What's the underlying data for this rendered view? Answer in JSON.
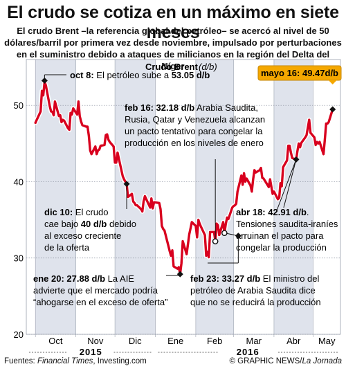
{
  "title": "El crudo se cotiza en un máximo en siete meses",
  "subtitle": "El crudo Brent –la referencia global del petróleo– se acercó al nivel de 50 dólares/barril por primera vez desde noviembre, impulsado por perturbaciones en el suministro debido a ataques de milicianos en la región del Delta del Níger",
  "chart_data": {
    "type": "line",
    "title": "Crudo Brent",
    "title_unit": "(d/b)",
    "ylim": [
      20,
      56
    ],
    "y_ticks": [
      20,
      30,
      40,
      50
    ],
    "x_months": [
      "Oct",
      "Nov",
      "Dic",
      "Ene",
      "Feb",
      "Mar",
      "Abr",
      "May"
    ],
    "years": [
      "2015",
      "2016"
    ],
    "grid": true,
    "color": "#d8001e",
    "series": [
      {
        "x": [
          "2015-10-01",
          "2015-10-02",
          "2015-10-05",
          "2015-10-06",
          "2015-10-07",
          "2015-10-08",
          "2015-10-09",
          "2015-10-12",
          "2015-10-13",
          "2015-10-14",
          "2015-10-15",
          "2015-10-16",
          "2015-10-19",
          "2015-10-20",
          "2015-10-21",
          "2015-10-22",
          "2015-10-23",
          "2015-10-26",
          "2015-10-27",
          "2015-10-28",
          "2015-10-29",
          "2015-10-30",
          "2015-11-02",
          "2015-11-03",
          "2015-11-04",
          "2015-11-05",
          "2015-11-06",
          "2015-11-09",
          "2015-11-10",
          "2015-11-11",
          "2015-11-12",
          "2015-11-13",
          "2015-11-16",
          "2015-11-17",
          "2015-11-18",
          "2015-11-19",
          "2015-11-20",
          "2015-11-23",
          "2015-11-24",
          "2015-11-25",
          "2015-11-26",
          "2015-11-27",
          "2015-11-30",
          "2015-12-01",
          "2015-12-02",
          "2015-12-03",
          "2015-12-04",
          "2015-12-07",
          "2015-12-08",
          "2015-12-09",
          "2015-12-10",
          "2015-12-11",
          "2015-12-14",
          "2015-12-15",
          "2015-12-16",
          "2015-12-17",
          "2015-12-18",
          "2015-12-21",
          "2015-12-22",
          "2015-12-23",
          "2015-12-24",
          "2015-12-28",
          "2015-12-29",
          "2015-12-30",
          "2015-12-31",
          "2016-01-04",
          "2016-01-05",
          "2016-01-06",
          "2016-01-07",
          "2016-01-08",
          "2016-01-11",
          "2016-01-12",
          "2016-01-13",
          "2016-01-14",
          "2016-01-15",
          "2016-01-18",
          "2016-01-19",
          "2016-01-20",
          "2016-01-21",
          "2016-01-22",
          "2016-01-25",
          "2016-01-26",
          "2016-01-27",
          "2016-01-28",
          "2016-01-29",
          "2016-02-01",
          "2016-02-02",
          "2016-02-03",
          "2016-02-04",
          "2016-02-05",
          "2016-02-08",
          "2016-02-09",
          "2016-02-10",
          "2016-02-11",
          "2016-02-12",
          "2016-02-15",
          "2016-02-16",
          "2016-02-17",
          "2016-02-18",
          "2016-02-19",
          "2016-02-22",
          "2016-02-23",
          "2016-02-24",
          "2016-02-25",
          "2016-02-26",
          "2016-02-29",
          "2016-03-01",
          "2016-03-02",
          "2016-03-03",
          "2016-03-04",
          "2016-03-07",
          "2016-03-08",
          "2016-03-09",
          "2016-03-10",
          "2016-03-11",
          "2016-03-14",
          "2016-03-15",
          "2016-03-16",
          "2016-03-17",
          "2016-03-18",
          "2016-03-21",
          "2016-03-22",
          "2016-03-23",
          "2016-03-24",
          "2016-03-28",
          "2016-03-29",
          "2016-03-30",
          "2016-03-31",
          "2016-04-01",
          "2016-04-04",
          "2016-04-05",
          "2016-04-06",
          "2016-04-07",
          "2016-04-08",
          "2016-04-11",
          "2016-04-12",
          "2016-04-13",
          "2016-04-14",
          "2016-04-15",
          "2016-04-18",
          "2016-04-19",
          "2016-04-20",
          "2016-04-21",
          "2016-04-22",
          "2016-04-25",
          "2016-04-26",
          "2016-04-27",
          "2016-04-28",
          "2016-04-29",
          "2016-05-02",
          "2016-05-03",
          "2016-05-04",
          "2016-05-05",
          "2016-05-06",
          "2016-05-09",
          "2016-05-10",
          "2016-05-11",
          "2016-05-12",
          "2016-05-13",
          "2016-05-16"
        ],
        "values": [
          47.7,
          48.1,
          49.2,
          51.9,
          51.3,
          53.05,
          52.6,
          49.9,
          49.2,
          49.15,
          48.7,
          50.5,
          48.6,
          48.7,
          47.8,
          48.1,
          48.0,
          47.0,
          46.8,
          49.0,
          48.8,
          49.6,
          48.8,
          50.5,
          48.6,
          47.9,
          47.4,
          47.2,
          47.2,
          46.0,
          44.1,
          43.6,
          44.6,
          43.6,
          44.1,
          44.2,
          44.7,
          44.8,
          46.1,
          46.2,
          45.5,
          45.2,
          44.6,
          42.5,
          42.5,
          43.8,
          43.0,
          40.7,
          40.3,
          40.0,
          39.7,
          38.0,
          38.4,
          37.4,
          37.2,
          36.9,
          36.9,
          36.4,
          36.1,
          37.4,
          38.1,
          36.6,
          37.8,
          36.5,
          37.3,
          37.2,
          36.4,
          34.2,
          33.8,
          33.6,
          31.6,
          30.9,
          30.3,
          31.0,
          28.9,
          28.6,
          28.8,
          27.88,
          29.3,
          32.2,
          30.5,
          31.8,
          33.1,
          33.9,
          34.7,
          34.2,
          32.7,
          35.0,
          34.5,
          34.1,
          33.0,
          30.3,
          30.8,
          30.1,
          33.4,
          33.4,
          32.18,
          34.5,
          34.3,
          33.0,
          34.7,
          33.27,
          34.4,
          35.3,
          35.1,
          36.6,
          36.8,
          36.9,
          37.1,
          38.7,
          40.8,
          39.6,
          41.1,
          40.0,
          40.4,
          39.5,
          38.7,
          40.3,
          41.5,
          41.2,
          41.5,
          41.8,
          40.5,
          40.4,
          39.3,
          40.3,
          39.3,
          38.4,
          38.7,
          37.7,
          37.9,
          39.8,
          39.4,
          41.9,
          42.8,
          44.7,
          44.7,
          43.8,
          43.1,
          42.91,
          44.0,
          45.0,
          44.5,
          45.1,
          45.8,
          46.1,
          47.1,
          48.1,
          46.4,
          45.8,
          44.8,
          45.2,
          45.0,
          45.2,
          43.6,
          45.5,
          47.6,
          47.6,
          47.8,
          49.47
        ]
      }
    ],
    "callouts": [
      {
        "date": "oct 8",
        "label": "oct 8:",
        "text": " El petróleo sube a ",
        "value": "53.05 d/b"
      },
      {
        "date": "feb 16",
        "value": "feb 16: 32.18 d/b",
        "text": " Arabia Saudita,",
        "lines": [
          "Rusia, Qatar y Venezuela alcanzan",
          "un pacto tentativo para congelar la",
          "producción en los niveles de enero"
        ]
      },
      {
        "date": "dic 10",
        "value": "dic 10:",
        "lines": [
          " El crudo",
          "cae bajo ",
          "40 d/b",
          " debido",
          "al exceso creciente",
          "de la oferta"
        ]
      },
      {
        "date": "abr 18",
        "value": "abr 18: 42.91 d/b",
        "text": ".",
        "lines": [
          "Tensiones saudita-iraníes",
          "arruinan el pacto para",
          "congelar la producción"
        ]
      },
      {
        "date": "ene 20",
        "value": "ene 20: 27.88 d/b",
        "text": " La AIE",
        "lines": [
          "advierte que el mercado podría",
          "“ahogarse en el exceso de oferta”"
        ]
      },
      {
        "date": "feb 23",
        "value": "feb 23: 33.27 d/b",
        "text": " El ministro del",
        "lines": [
          "petróleo de Arabia Saudita dice",
          "que no se reducirá la producción"
        ]
      },
      {
        "date": "mayo 16",
        "text": "mayo 16: 49.47d/b"
      }
    ]
  },
  "source_label": "Fuentes: ",
  "source_ft": "Financial Times",
  "source_rest": ", Investing.com",
  "credit_main": "© GRAPHIC NEWS/",
  "credit_italic": "La Jornada",
  "colors": {
    "line": "#d8001e",
    "band": "#dfe3ec",
    "callout": "#f5a800"
  }
}
